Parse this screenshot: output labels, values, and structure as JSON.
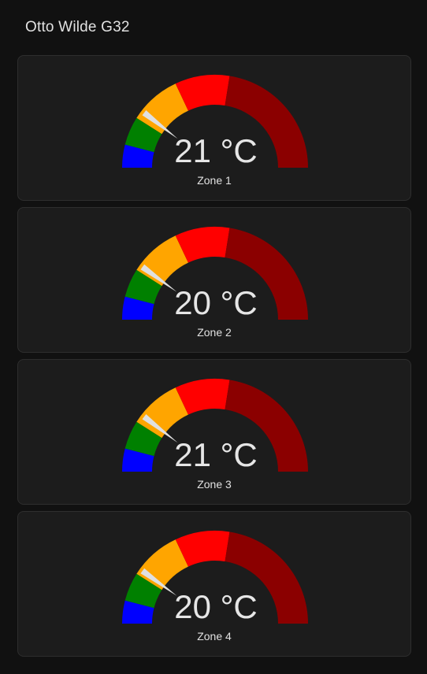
{
  "header": {
    "title": "Otto Wilde G32"
  },
  "gauge_colors": {
    "blue": "#0000ff",
    "green": "#008000",
    "orange": "#ffa500",
    "red": "#ff0000",
    "dark_red": "#8b0000",
    "needle": "#e0e0e0"
  },
  "gauge_scale": {
    "min": 0,
    "max": 100,
    "segments": [
      {
        "from": 0,
        "to": 8,
        "color": "#0000ff"
      },
      {
        "from": 8,
        "to": 18,
        "color": "#008000"
      },
      {
        "from": 18,
        "to": 36,
        "color": "#ffa500"
      },
      {
        "from": 36,
        "to": 55,
        "color": "#ff0000"
      },
      {
        "from": 55,
        "to": 100,
        "color": "#8b0000"
      }
    ]
  },
  "zones": [
    {
      "label": "Zone 1",
      "value": 21,
      "display": "21 °C"
    },
    {
      "label": "Zone 2",
      "value": 20,
      "display": "20 °C"
    },
    {
      "label": "Zone 3",
      "value": 21,
      "display": "21 °C"
    },
    {
      "label": "Zone 4",
      "value": 20,
      "display": "20 °C"
    }
  ]
}
